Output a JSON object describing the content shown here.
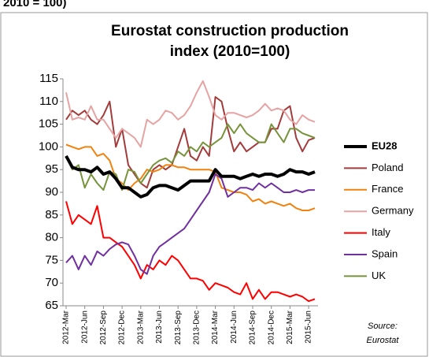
{
  "top_caption": "2010 = 100)",
  "chart_data": {
    "type": "line",
    "title": [
      "Eurostat construction production",
      "index (2010=100)"
    ],
    "source": [
      "Source:",
      "Eurostat"
    ],
    "categories": [
      "2012-Mar",
      null,
      null,
      "2012-Jun",
      null,
      null,
      "2012-Sep",
      null,
      null,
      "2012-Dec",
      null,
      null,
      "2013-Mar",
      null,
      null,
      "2013-Jun",
      null,
      null,
      "2013-Sep",
      null,
      null,
      "2013-Dec",
      null,
      null,
      "2014-Mar",
      null,
      null,
      "2014-Jun",
      null,
      null,
      "2014-Sep",
      null,
      null,
      "2014-Dec",
      null,
      null,
      "2015-Mar",
      null,
      null,
      "2015-Jun",
      null
    ],
    "ylim": [
      65,
      115
    ],
    "yticks": [
      65,
      70,
      75,
      80,
      85,
      90,
      95,
      100,
      105,
      110,
      115
    ],
    "grid": false,
    "legend": "right",
    "series": [
      {
        "name": "EU28",
        "color": "#000000",
        "values": [
          98,
          95.5,
          95,
          95,
          94.5,
          95.5,
          94,
          94.5,
          93,
          91,
          91,
          90,
          89,
          89.5,
          91,
          91.5,
          91.5,
          91,
          90.5,
          91.5,
          92.5,
          92.5,
          92.5,
          92.5,
          95,
          93.5,
          93.5,
          93.5,
          93,
          93.5,
          94,
          93.5,
          94,
          94,
          93.5,
          94,
          95,
          94.5,
          94.5,
          94,
          94.5
        ]
      },
      {
        "name": "Poland",
        "color": "#a33b3b",
        "values": [
          106,
          108,
          107,
          108,
          106,
          105,
          107,
          110,
          100,
          104,
          96,
          94,
          92,
          91,
          95,
          96,
          95,
          96,
          100,
          104,
          98,
          97,
          100,
          98,
          111,
          110,
          104,
          99,
          101,
          99,
          100,
          101,
          101,
          104,
          104,
          108,
          109,
          102,
          99,
          101.5,
          102
        ]
      },
      {
        "name": "France",
        "color": "#f0820f",
        "values": [
          100.5,
          100,
          99.5,
          100,
          100,
          98,
          98.5,
          97,
          93,
          92,
          90.5,
          92,
          93,
          95,
          94.5,
          95,
          96,
          96,
          95.5,
          95.5,
          95,
          95,
          95,
          95,
          94.5,
          91,
          90.5,
          90,
          90,
          89.5,
          88,
          88.5,
          87.5,
          88,
          87.5,
          87,
          87.5,
          86.5,
          86,
          86,
          86.5
        ]
      },
      {
        "name": "Germany",
        "color": "#e6a3a3",
        "values": [
          112,
          106,
          106.5,
          106,
          109,
          106,
          106,
          104,
          102,
          104,
          103,
          102,
          100,
          106,
          105,
          106,
          108,
          107.5,
          106,
          107,
          109,
          112,
          114.5,
          111,
          107,
          106,
          107.5,
          107.5,
          107,
          106.5,
          107,
          108,
          109.5,
          108,
          108.5,
          108,
          106,
          105,
          107,
          106,
          105.5
        ]
      },
      {
        "name": "Italy",
        "color": "#ff0000",
        "values": [
          88,
          83,
          85,
          84,
          83,
          87,
          80,
          80,
          79,
          78,
          76,
          74,
          71,
          74,
          73,
          75,
          74,
          76,
          75,
          73,
          71,
          71,
          70.5,
          68.5,
          70,
          69.5,
          69,
          68,
          67.5,
          70,
          66.5,
          68.5,
          66.5,
          68,
          68,
          67.5,
          67,
          67.5,
          67,
          66,
          66.5
        ]
      },
      {
        "name": "Spain",
        "color": "#7030a0",
        "values": [
          74.5,
          76,
          73,
          76,
          74,
          77,
          76,
          77.5,
          78.5,
          79,
          78.5,
          76,
          73,
          72,
          76,
          78,
          79,
          80,
          81,
          82,
          84,
          86,
          88,
          90,
          94,
          93,
          89,
          90,
          91,
          91,
          90.5,
          92,
          91,
          92,
          91,
          90,
          90,
          90.5,
          90,
          90.5,
          90.5
        ]
      },
      {
        "name": "UK",
        "color": "#77933c",
        "values": [
          98,
          95,
          96,
          91,
          94,
          92,
          90.5,
          94.5,
          94,
          90.5,
          95,
          94.5,
          92,
          94,
          96,
          97,
          97.5,
          96.5,
          99,
          98,
          100,
          99,
          101,
          100,
          101,
          102,
          105,
          103,
          105,
          103,
          102,
          101,
          101,
          105,
          103,
          101,
          104,
          104,
          103,
          102.5,
          102
        ]
      }
    ]
  }
}
